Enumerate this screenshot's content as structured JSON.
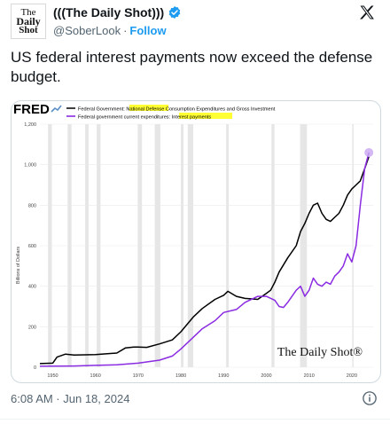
{
  "tweet": {
    "display_name": "(((The Daily Shot)))",
    "handle": "@SoberLook",
    "separator": "·",
    "follow_label": "Follow",
    "text": "US federal interest payments now exceed the defense budget.",
    "timestamp": "6:08 AM · Jun 18, 2024",
    "avatar_lines": [
      "The",
      "Daily",
      "Shot"
    ]
  },
  "colors": {
    "defense_line": "#000000",
    "interest_line": "#8a2be2",
    "recession_shade": "#e6e6e6",
    "highlight": "#ffff33",
    "link": "#1d9bf0"
  },
  "chart_data": {
    "type": "line",
    "source_logo": "FRED",
    "legend": [
      {
        "prefix": "Federal Government: ",
        "highlight": "National Defense",
        "suffix": " Consumption Expenditures and Gross Investment"
      },
      {
        "prefix": "Federal government current expenditures: ",
        "highlight": "Interest payments",
        "suffix": ""
      }
    ],
    "ylabel": "Billions of Dollars",
    "ylim": [
      0,
      1200
    ],
    "yticks": [
      0,
      200,
      400,
      600,
      800,
      "1,000",
      "1,200"
    ],
    "xlim": [
      1947,
      2025
    ],
    "xticks": [
      1950,
      1960,
      1970,
      1980,
      1990,
      2000,
      2010,
      2020
    ],
    "watermark": "The Daily Shot®",
    "recessions": [
      [
        1948.9,
        1949.8
      ],
      [
        1953.5,
        1954.4
      ],
      [
        1957.6,
        1958.4
      ],
      [
        1960.3,
        1961.2
      ],
      [
        1969.9,
        1970.9
      ],
      [
        1973.9,
        1975.2
      ],
      [
        1980.0,
        1980.6
      ],
      [
        1981.6,
        1982.9
      ],
      [
        1990.6,
        1991.2
      ],
      [
        2001.2,
        2001.9
      ],
      [
        2007.9,
        2009.5
      ],
      [
        2020.1,
        2020.4
      ]
    ],
    "series": [
      {
        "name": "National Defense",
        "x": [
          1947,
          1950,
          1951,
          1953,
          1955,
          1960,
          1965,
          1967,
          1969,
          1970,
          1972,
          1975,
          1978,
          1980,
          1983,
          1985,
          1988,
          1990,
          1991,
          1993,
          1995,
          1998,
          2000,
          2001,
          2002,
          2003,
          2005,
          2007,
          2008,
          2009,
          2010,
          2011,
          2012,
          2013,
          2014,
          2015,
          2016,
          2017,
          2018,
          2019,
          2020,
          2021,
          2022,
          2023,
          2024
        ],
        "values": [
          18,
          20,
          50,
          65,
          60,
          62,
          70,
          95,
          100,
          100,
          98,
          115,
          135,
          175,
          250,
          290,
          335,
          355,
          375,
          350,
          340,
          335,
          365,
          380,
          420,
          470,
          540,
          600,
          670,
          710,
          760,
          800,
          810,
          760,
          730,
          720,
          740,
          760,
          800,
          850,
          880,
          900,
          920,
          980,
          1040
        ]
      },
      {
        "name": "Interest payments",
        "x": [
          1947,
          1955,
          1960,
          1965,
          1970,
          1975,
          1978,
          1980,
          1983,
          1985,
          1988,
          1990,
          1993,
          1995,
          1998,
          2000,
          2002,
          2003,
          2004,
          2005,
          2007,
          2008,
          2009,
          2010,
          2011,
          2012,
          2013,
          2014,
          2015,
          2016,
          2017,
          2018,
          2019,
          2020,
          2021,
          2022,
          2023,
          2024
        ],
        "values": [
          5,
          6,
          9,
          12,
          20,
          35,
          55,
          90,
          150,
          190,
          230,
          270,
          285,
          320,
          350,
          350,
          330,
          300,
          295,
          320,
          380,
          400,
          350,
          380,
          440,
          410,
          400,
          420,
          410,
          450,
          470,
          500,
          560,
          520,
          600,
          800,
          980,
          1060
        ]
      }
    ]
  }
}
